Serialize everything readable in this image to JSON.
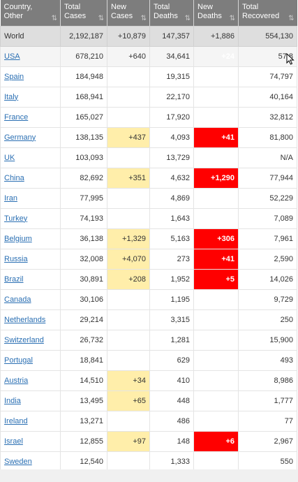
{
  "headers": [
    {
      "line1": "Country,",
      "line2": "Other"
    },
    {
      "line1": "Total",
      "line2": "Cases"
    },
    {
      "line1": "New",
      "line2": "Cases"
    },
    {
      "line1": "Total",
      "line2": "Deaths"
    },
    {
      "line1": "New",
      "line2": "Deaths"
    },
    {
      "line1": "Total",
      "line2": "Recovered"
    }
  ],
  "sort_icons": [
    "⇅",
    "⇅",
    "⇅",
    "⇅",
    "⇅",
    "⇅"
  ],
  "world": {
    "country": "World",
    "total_cases": "2,192,187",
    "new_cases": "+10,879",
    "total_deaths": "147,357",
    "new_deaths": "+1,886",
    "total_recovered": "554,130"
  },
  "rows": [
    {
      "country": "USA",
      "total_cases": "678,210",
      "new_cases": "+640",
      "total_deaths": "34,641",
      "new_deaths": "+24",
      "total_recovered": "57,8"
    },
    {
      "country": "Spain",
      "total_cases": "184,948",
      "new_cases": "",
      "total_deaths": "19,315",
      "new_deaths": "",
      "total_recovered": "74,797"
    },
    {
      "country": "Italy",
      "total_cases": "168,941",
      "new_cases": "",
      "total_deaths": "22,170",
      "new_deaths": "",
      "total_recovered": "40,164"
    },
    {
      "country": "France",
      "total_cases": "165,027",
      "new_cases": "",
      "total_deaths": "17,920",
      "new_deaths": "",
      "total_recovered": "32,812"
    },
    {
      "country": "Germany",
      "total_cases": "138,135",
      "new_cases": "+437",
      "total_deaths": "4,093",
      "new_deaths": "+41",
      "total_recovered": "81,800"
    },
    {
      "country": "UK",
      "total_cases": "103,093",
      "new_cases": "",
      "total_deaths": "13,729",
      "new_deaths": "",
      "total_recovered": "N/A"
    },
    {
      "country": "China",
      "total_cases": "82,692",
      "new_cases": "+351",
      "total_deaths": "4,632",
      "new_deaths": "+1,290",
      "total_recovered": "77,944"
    },
    {
      "country": "Iran",
      "total_cases": "77,995",
      "new_cases": "",
      "total_deaths": "4,869",
      "new_deaths": "",
      "total_recovered": "52,229"
    },
    {
      "country": "Turkey",
      "total_cases": "74,193",
      "new_cases": "",
      "total_deaths": "1,643",
      "new_deaths": "",
      "total_recovered": "7,089"
    },
    {
      "country": "Belgium",
      "total_cases": "36,138",
      "new_cases": "+1,329",
      "total_deaths": "5,163",
      "new_deaths": "+306",
      "total_recovered": "7,961"
    },
    {
      "country": "Russia",
      "total_cases": "32,008",
      "new_cases": "+4,070",
      "total_deaths": "273",
      "new_deaths": "+41",
      "total_recovered": "2,590"
    },
    {
      "country": "Brazil",
      "total_cases": "30,891",
      "new_cases": "+208",
      "total_deaths": "1,952",
      "new_deaths": "+5",
      "total_recovered": "14,026"
    },
    {
      "country": "Canada",
      "total_cases": "30,106",
      "new_cases": "",
      "total_deaths": "1,195",
      "new_deaths": "",
      "total_recovered": "9,729"
    },
    {
      "country": "Netherlands",
      "total_cases": "29,214",
      "new_cases": "",
      "total_deaths": "3,315",
      "new_deaths": "",
      "total_recovered": "250"
    },
    {
      "country": "Switzerland",
      "total_cases": "26,732",
      "new_cases": "",
      "total_deaths": "1,281",
      "new_deaths": "",
      "total_recovered": "15,900"
    },
    {
      "country": "Portugal",
      "total_cases": "18,841",
      "new_cases": "",
      "total_deaths": "629",
      "new_deaths": "",
      "total_recovered": "493"
    },
    {
      "country": "Austria",
      "total_cases": "14,510",
      "new_cases": "+34",
      "total_deaths": "410",
      "new_deaths": "",
      "total_recovered": "8,986"
    },
    {
      "country": "India",
      "total_cases": "13,495",
      "new_cases": "+65",
      "total_deaths": "448",
      "new_deaths": "",
      "total_recovered": "1,777"
    },
    {
      "country": "Ireland",
      "total_cases": "13,271",
      "new_cases": "",
      "total_deaths": "486",
      "new_deaths": "",
      "total_recovered": "77"
    },
    {
      "country": "Israel",
      "total_cases": "12,855",
      "new_cases": "+97",
      "total_deaths": "148",
      "new_deaths": "+6",
      "total_recovered": "2,967"
    },
    {
      "country": "Sweden",
      "total_cases": "12,540",
      "new_cases": "",
      "total_deaths": "1,333",
      "new_deaths": "",
      "total_recovered": "550"
    }
  ],
  "colors": {
    "header_bg": "#7d7d7d",
    "world_bg": "#dedede",
    "new_cases_bg": "#ffeeaa",
    "new_deaths_bg": "#ff0000",
    "link": "#2a6fb3"
  }
}
